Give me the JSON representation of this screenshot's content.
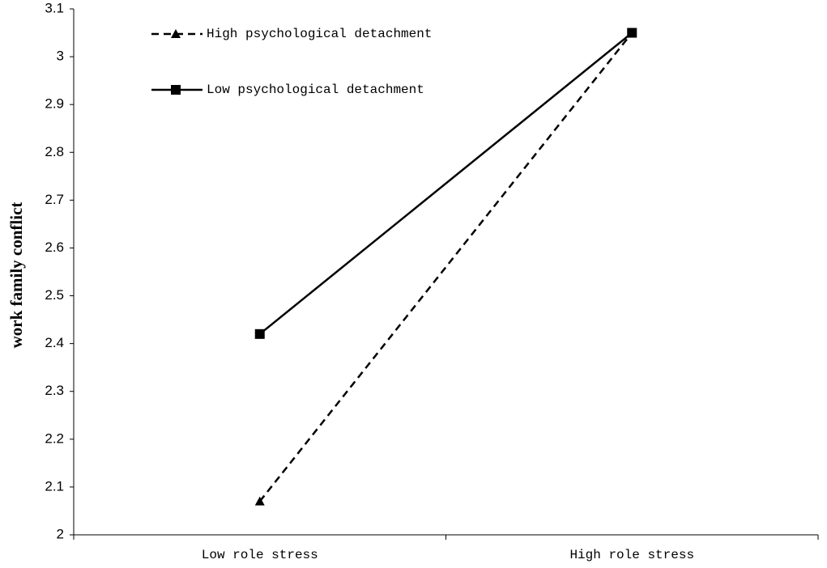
{
  "chart_data": {
    "type": "line",
    "y_label": "work family conflict",
    "categories": [
      "Low role stress",
      "High role stress"
    ],
    "series": [
      {
        "name": "High psychological detachment",
        "color": "#000000",
        "linestyle": "dashed",
        "marker": "triangle",
        "values": [
          2.07,
          3.05
        ]
      },
      {
        "name": "Low psychological detachment",
        "color": "#000000",
        "linestyle": "solid",
        "marker": "square",
        "values": [
          2.42,
          3.05
        ]
      }
    ],
    "ylim": [
      2,
      3.1
    ],
    "yticks": [
      2,
      2.1,
      2.2,
      2.3,
      2.4,
      2.5,
      2.6,
      2.7,
      2.8,
      2.9,
      3,
      3.1
    ],
    "grid": false,
    "legend": "upper left"
  }
}
